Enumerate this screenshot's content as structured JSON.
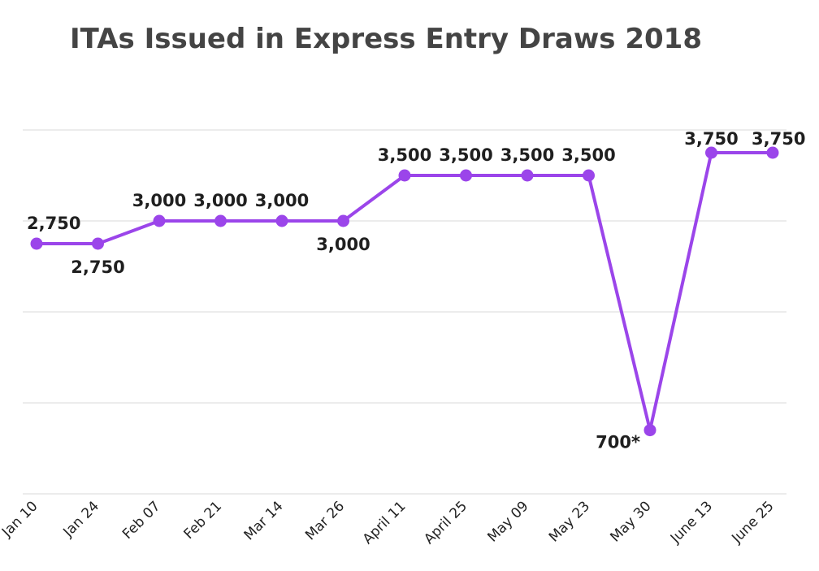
{
  "chart_data": {
    "type": "line",
    "title": "ITAs Issued in Express Entry Draws 2018",
    "xlabel": "",
    "ylabel": "",
    "categories": [
      "Jan 10",
      "Jan 24",
      "Feb 07",
      "Feb 21",
      "Mar 14",
      "Mar 26",
      "April 11",
      "April 25",
      "May 09",
      "May 23",
      "May 30",
      "June 13",
      "June 25"
    ],
    "values": [
      2750,
      2750,
      3000,
      3000,
      3000,
      3000,
      3500,
      3500,
      3500,
      3500,
      700,
      3750,
      3750
    ],
    "data_labels": [
      "2,750",
      "2,750",
      "3,000",
      "3,000",
      "3,000",
      "3,000",
      "3,500",
      "3,500",
      "3,500",
      "3,500",
      "700*",
      "3,750",
      "3,750"
    ],
    "ylim": [
      0,
      4000
    ],
    "grid": true,
    "legend": "none",
    "line_color": "#9b45ea"
  }
}
